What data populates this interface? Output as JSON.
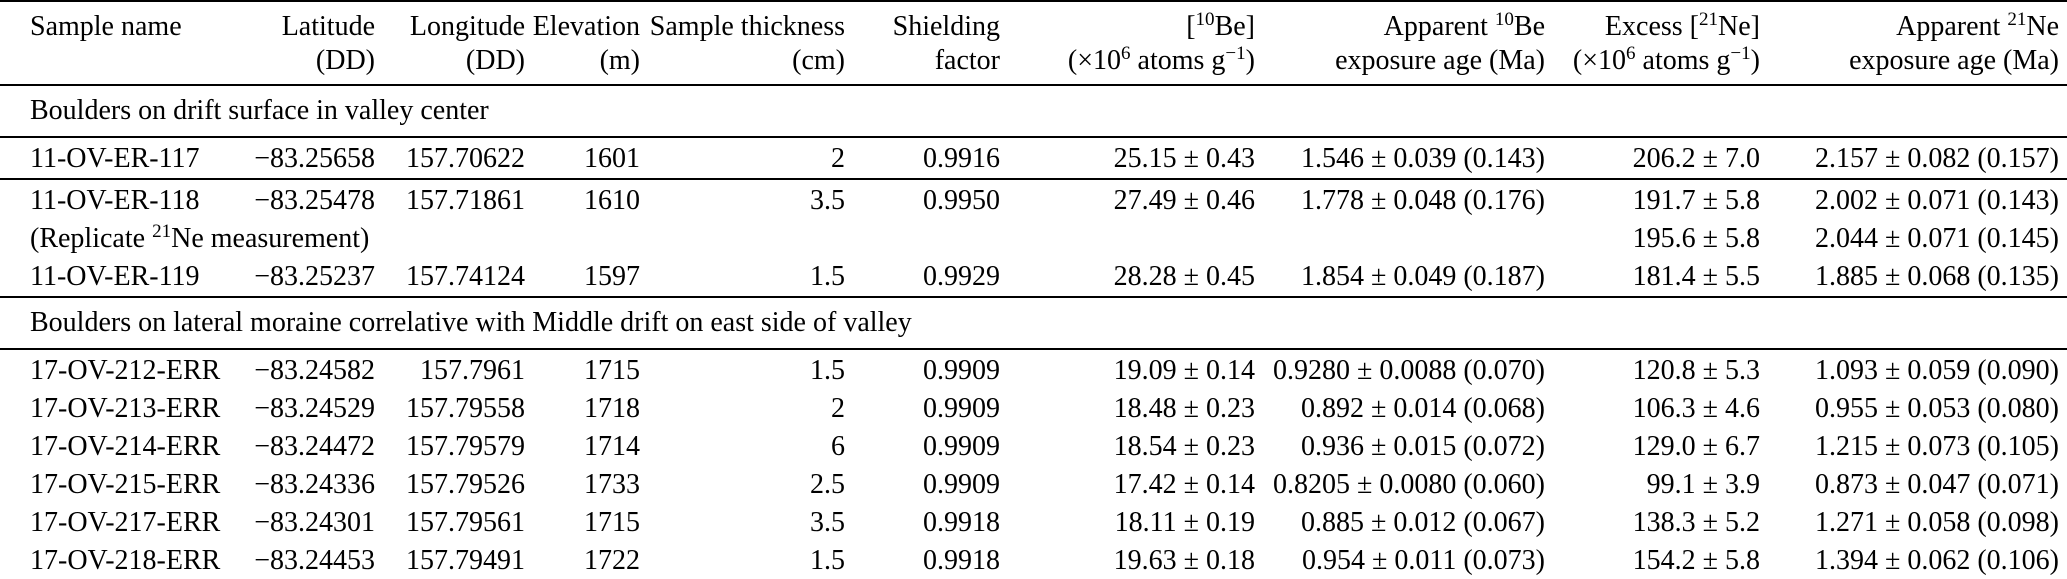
{
  "table": {
    "description": "Sample location and cosmogenic-nuclide data table",
    "columns": [
      {
        "id": "sample",
        "line1": "Sample name",
        "line2": ""
      },
      {
        "id": "lat",
        "line1": "Latitude",
        "line2": "(DD)"
      },
      {
        "id": "lon",
        "line1": "Longitude",
        "line2": "(DD)"
      },
      {
        "id": "elev",
        "line1": "Elevation",
        "line2": "(m)"
      },
      {
        "id": "thickness",
        "line1": "Sample thickness",
        "line2": "(cm)"
      },
      {
        "id": "shielding",
        "line1": "Shielding",
        "line2": "factor"
      },
      {
        "id": "be10",
        "line1": "[^{10}Be]",
        "line2": "(×10^{6} atoms g^{−1})"
      },
      {
        "id": "be10_age",
        "line1": "Apparent ^{10}Be",
        "line2": "exposure age (Ma)"
      },
      {
        "id": "ne21",
        "line1": "Excess [^{21}Ne]",
        "line2": "(×10^{6} atoms g^{−1})"
      },
      {
        "id": "ne21_age",
        "line1": "Apparent ^{21}Ne",
        "line2": "exposure age (Ma)"
      }
    ],
    "sections": [
      {
        "title": "Boulders on drift surface in valley center",
        "row_groups": [
          [
            {
              "sample": "11-OV-ER-117",
              "lat": "−83.25658",
              "lon": "157.70622",
              "elev": "1601",
              "thickness": "2",
              "shielding": "0.9916",
              "be10": "25.15 ± 0.43",
              "be10_age": "1.546 ± 0.039 (0.143)",
              "ne21": "206.2 ± 7.0",
              "ne21_age": "2.157 ± 0.082 (0.157)"
            }
          ],
          [
            {
              "sample": "11-OV-ER-118",
              "lat": "−83.25478",
              "lon": "157.71861",
              "elev": "1610",
              "thickness": "3.5",
              "shielding": "0.9950",
              "be10": "27.49 ± 0.46",
              "be10_age": "1.778 ± 0.048 (0.176)",
              "ne21": "191.7 ± 5.8",
              "ne21_age": "2.002 ± 0.071 (0.143)"
            },
            {
              "sample": "(Replicate ^{21}Ne measurement)",
              "lat": "",
              "lon": "",
              "elev": "",
              "thickness": "",
              "shielding": "",
              "be10": "",
              "be10_age": "",
              "ne21": "195.6 ± 5.8",
              "ne21_age": "2.044 ± 0.071 (0.145)"
            },
            {
              "sample": "11-OV-ER-119",
              "lat": "−83.25237",
              "lon": "157.74124",
              "elev": "1597",
              "thickness": "1.5",
              "shielding": "0.9929",
              "be10": "28.28 ± 0.45",
              "be10_age": "1.854 ± 0.049 (0.187)",
              "ne21": "181.4 ± 5.5",
              "ne21_age": "1.885 ± 0.068 (0.135)"
            }
          ]
        ]
      },
      {
        "title": "Boulders on lateral moraine correlative with Middle drift on east side of valley",
        "row_groups": [
          [
            {
              "sample": "17-OV-212-ERR",
              "lat": "−83.24582",
              "lon": "157.7961",
              "elev": "1715",
              "thickness": "1.5",
              "shielding": "0.9909",
              "be10": "19.09 ± 0.14",
              "be10_age": "0.9280 ± 0.0088 (0.070)",
              "ne21": "120.8 ± 5.3",
              "ne21_age": "1.093 ± 0.059 (0.090)"
            },
            {
              "sample": "17-OV-213-ERR",
              "lat": "−83.24529",
              "lon": "157.79558",
              "elev": "1718",
              "thickness": "2",
              "shielding": "0.9909",
              "be10": "18.48 ± 0.23",
              "be10_age": "0.892 ± 0.014 (0.068)",
              "ne21": "106.3 ± 4.6",
              "ne21_age": "0.955 ± 0.053 (0.080)"
            },
            {
              "sample": "17-OV-214-ERR",
              "lat": "−83.24472",
              "lon": "157.79579",
              "elev": "1714",
              "thickness": "6",
              "shielding": "0.9909",
              "be10": "18.54 ± 0.23",
              "be10_age": "0.936 ± 0.015 (0.072)",
              "ne21": "129.0 ± 6.7",
              "ne21_age": "1.215 ± 0.073 (0.105)"
            },
            {
              "sample": "17-OV-215-ERR",
              "lat": "−83.24336",
              "lon": "157.79526",
              "elev": "1733",
              "thickness": "2.5",
              "shielding": "0.9909",
              "be10": "17.42 ± 0.14",
              "be10_age": "0.8205 ± 0.0080 (0.060)",
              "ne21": "99.1 ± 3.9",
              "ne21_age": "0.873 ± 0.047 (0.071)"
            },
            {
              "sample": "17-OV-217-ERR",
              "lat": "−83.24301",
              "lon": "157.79561",
              "elev": "1715",
              "thickness": "3.5",
              "shielding": "0.9918",
              "be10": "18.11 ± 0.19",
              "be10_age": "0.885 ± 0.012 (0.067)",
              "ne21": "138.3 ± 5.2",
              "ne21_age": "1.271 ± 0.058 (0.098)"
            },
            {
              "sample": "17-OV-218-ERR",
              "lat": "−83.24453",
              "lon": "157.79491",
              "elev": "1722",
              "thickness": "1.5",
              "shielding": "0.9918",
              "be10": "19.63 ± 0.18",
              "be10_age": "0.954 ± 0.011 (0.073)",
              "ne21": "154.2 ± 5.8",
              "ne21_age": "1.394 ± 0.062 (0.106)"
            }
          ]
        ]
      }
    ]
  },
  "colors": {
    "background": "#ffffff",
    "text": "#000000",
    "rule": "#000000"
  }
}
